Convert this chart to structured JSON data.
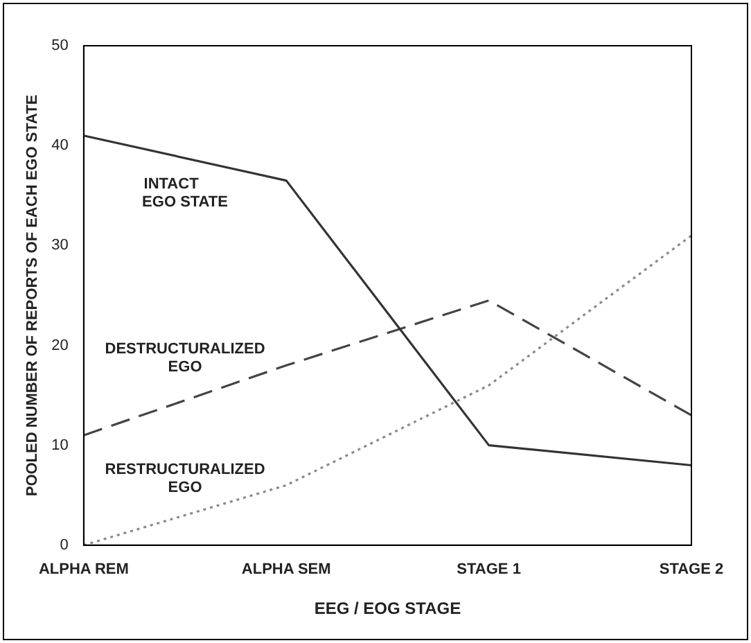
{
  "chart_data": {
    "type": "line",
    "xlabel": "EEG / EOG STAGE",
    "ylabel": "POOLED NUMBER OF REPORTS OF EACH EGO STATE",
    "categories": [
      "ALPHA REM",
      "ALPHA SEM",
      "STAGE 1",
      "STAGE 2"
    ],
    "series": [
      {
        "name": "INTACT EGO STATE",
        "color": "#333333",
        "line_style": "solid",
        "values": [
          41,
          36.5,
          10,
          8
        ]
      },
      {
        "name": "DESTRUCTURALIZED EGO",
        "color": "#444444",
        "line_style": "dashed",
        "values": [
          11,
          18,
          24.5,
          13
        ]
      },
      {
        "name": "RESTRUCTURALIZED EGO",
        "color": "#8a8a8a",
        "line_style": "dotted",
        "values": [
          0,
          6,
          16,
          31
        ]
      }
    ],
    "ylim": [
      0,
      50
    ],
    "yticks": [
      0,
      10,
      20,
      30,
      40,
      50
    ],
    "grid": false,
    "legend": false,
    "marker": "none"
  }
}
